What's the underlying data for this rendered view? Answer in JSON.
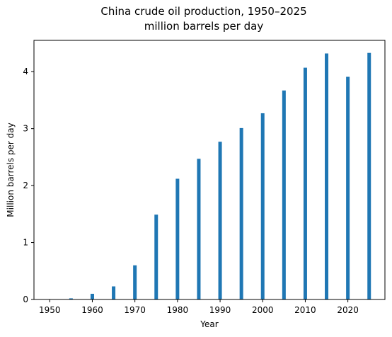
{
  "chart_data": {
    "type": "bar",
    "title": "China crude oil production, 1950–2025",
    "subtitle": "million barrels per day",
    "xlabel": "Year",
    "ylabel": "Million barrels per day",
    "x": [
      1950,
      1955,
      1960,
      1965,
      1970,
      1975,
      1980,
      1985,
      1990,
      1995,
      2000,
      2005,
      2010,
      2015,
      2020,
      2025
    ],
    "values": [
      0.002,
      0.02,
      0.1,
      0.23,
      0.6,
      1.49,
      2.12,
      2.47,
      2.77,
      3.01,
      3.27,
      3.67,
      4.07,
      4.32,
      3.91,
      4.33
    ],
    "xlim": [
      1946.3,
      2028.7
    ],
    "ylim": [
      0,
      4.55
    ],
    "xticks": [
      "1950",
      "1960",
      "1970",
      "1980",
      "1990",
      "2000",
      "2010",
      "2020"
    ],
    "yticks": [
      "0",
      "1",
      "2",
      "3",
      "4"
    ],
    "bar_color": "#1f77b4",
    "grid": false,
    "legend": "none"
  }
}
